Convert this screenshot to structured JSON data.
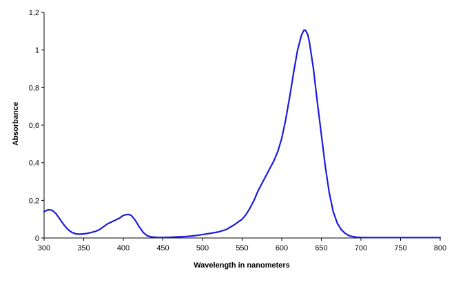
{
  "chart_data": {
    "type": "line",
    "title": "",
    "xlabel": "Wavelength in nanometers",
    "ylabel": "Absorbance",
    "xlim": [
      300,
      800
    ],
    "ylim": [
      0,
      1.2
    ],
    "x_ticks": [
      300,
      350,
      400,
      450,
      500,
      550,
      600,
      650,
      700,
      750,
      800
    ],
    "x_tick_labels": [
      "300",
      "350",
      "400",
      "450",
      "500",
      "550",
      "600",
      "650",
      "700",
      "750",
      "800"
    ],
    "y_ticks": [
      0,
      0.2,
      0.4,
      0.6,
      0.8,
      1,
      1.2
    ],
    "y_tick_labels": [
      "0",
      "0,2",
      "0,4",
      "0,6",
      "0,8",
      "1",
      "1,2"
    ],
    "grid": false,
    "legend": "none",
    "line_color": "#1a1adb",
    "series": [
      {
        "x": [
          300,
          305,
          310,
          315,
          320,
          325,
          330,
          335,
          340,
          345,
          350,
          355,
          360,
          365,
          370,
          375,
          380,
          385,
          390,
          395,
          400,
          405,
          407,
          410,
          415,
          420,
          425,
          430,
          435,
          440,
          445,
          450,
          460,
          470,
          480,
          490,
          500,
          510,
          520,
          530,
          540,
          550,
          555,
          560,
          565,
          570,
          575,
          580,
          585,
          590,
          595,
          600,
          605,
          610,
          615,
          620,
          625,
          628,
          630,
          633,
          635,
          640,
          645,
          650,
          655,
          660,
          665,
          670,
          675,
          680,
          685,
          690,
          695,
          700,
          710,
          720,
          730,
          750,
          800
        ],
        "y": [
          0.14,
          0.15,
          0.148,
          0.13,
          0.1,
          0.07,
          0.045,
          0.03,
          0.022,
          0.02,
          0.022,
          0.025,
          0.03,
          0.035,
          0.045,
          0.06,
          0.075,
          0.085,
          0.095,
          0.105,
          0.12,
          0.125,
          0.125,
          0.12,
          0.095,
          0.06,
          0.03,
          0.012,
          0.006,
          0.004,
          0.003,
          0.003,
          0.004,
          0.006,
          0.008,
          0.012,
          0.018,
          0.025,
          0.032,
          0.045,
          0.07,
          0.1,
          0.125,
          0.16,
          0.2,
          0.25,
          0.29,
          0.33,
          0.37,
          0.41,
          0.46,
          0.53,
          0.63,
          0.75,
          0.88,
          1.0,
          1.08,
          1.105,
          1.105,
          1.08,
          1.04,
          0.9,
          0.72,
          0.55,
          0.38,
          0.24,
          0.14,
          0.08,
          0.045,
          0.025,
          0.012,
          0.007,
          0.004,
          0.003,
          0.002,
          0.002,
          0.002,
          0.002,
          0.002
        ]
      }
    ]
  }
}
